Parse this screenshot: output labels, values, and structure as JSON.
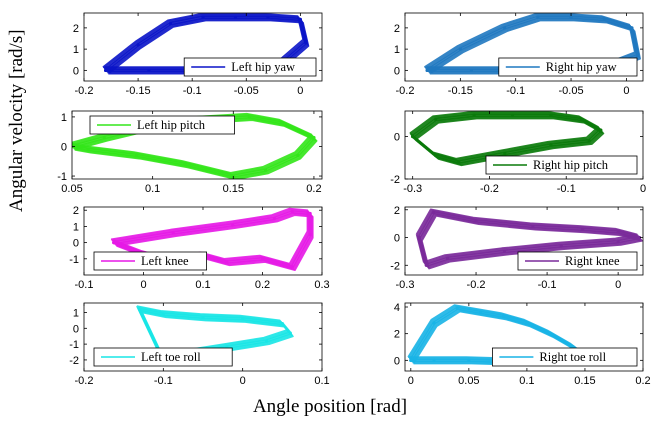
{
  "figure": {
    "ylabel": "Angular velocity [rad/s]",
    "xlabel": "Angle position [rad]"
  },
  "chart_data": [
    {
      "type": "line",
      "name": "Left hip yaw",
      "color": "#0a14c8",
      "legend_pos": "bottom-right",
      "xlim": [
        -0.2,
        0.02
      ],
      "ylim": [
        -0.5,
        2.7
      ],
      "xticks": [
        -0.2,
        -0.15,
        -0.1,
        -0.05,
        0
      ],
      "xtick_labels": [
        "-0.2",
        "-0.15",
        "-0.1",
        "-0.05",
        "0"
      ],
      "yticks": [
        0,
        1,
        2
      ],
      "ytick_labels": [
        "0",
        "1",
        "2"
      ],
      "x": [
        -0.18,
        -0.15,
        -0.12,
        -0.09,
        -0.06,
        -0.03,
        0.0,
        0.005,
        -0.02,
        -0.06,
        -0.1,
        -0.14,
        -0.18
      ],
      "y": [
        0.0,
        1.2,
        2.2,
        2.5,
        2.5,
        2.5,
        2.4,
        1.3,
        0.2,
        -0.05,
        0.0,
        0.0,
        0.0
      ]
    },
    {
      "type": "line",
      "name": "Right hip yaw",
      "color": "#1f78c0",
      "legend_pos": "bottom-right",
      "xlim": [
        -0.2,
        0.015
      ],
      "ylim": [
        -0.5,
        2.7
      ],
      "xticks": [
        -0.2,
        -0.15,
        -0.1,
        -0.05,
        0
      ],
      "xtick_labels": [
        "-0.2",
        "-0.15",
        "-0.1",
        "-0.05",
        "0"
      ],
      "yticks": [
        0,
        1,
        2
      ],
      "ytick_labels": [
        "0",
        "1",
        "2"
      ],
      "x": [
        -0.18,
        -0.15,
        -0.11,
        -0.08,
        -0.05,
        -0.02,
        0.005,
        0.01,
        -0.02,
        -0.06,
        -0.1,
        -0.14,
        -0.18
      ],
      "y": [
        0.0,
        1.0,
        2.0,
        2.5,
        2.5,
        2.4,
        2.0,
        0.7,
        0.1,
        -0.05,
        0.0,
        0.0,
        0.0
      ]
    },
    {
      "type": "line",
      "name": "Left hip pitch",
      "color": "#33e61a",
      "legend_pos": "top-left",
      "xlim": [
        0.05,
        0.205
      ],
      "ylim": [
        -1.1,
        1.2
      ],
      "xticks": [
        0.05,
        0.1,
        0.15,
        0.2
      ],
      "xtick_labels": [
        "0.05",
        "0.1",
        "0.15",
        "0.2"
      ],
      "yticks": [
        -1,
        0,
        1
      ],
      "ytick_labels": [
        "-1",
        "0",
        "1"
      ],
      "x": [
        0.05,
        0.07,
        0.1,
        0.13,
        0.16,
        0.18,
        0.2,
        0.19,
        0.17,
        0.15,
        0.12,
        0.09,
        0.06,
        0.05
      ],
      "y": [
        0.0,
        0.3,
        0.7,
        0.9,
        1.0,
        0.8,
        0.3,
        -0.3,
        -0.8,
        -1.0,
        -0.6,
        -0.3,
        -0.1,
        0.0
      ]
    },
    {
      "type": "line",
      "name": "Right hip pitch",
      "color": "#0a7a0a",
      "legend_pos": "bottom-right",
      "xlim": [
        -0.31,
        0.0
      ],
      "ylim": [
        -2.0,
        1.2
      ],
      "xticks": [
        -0.3,
        -0.2,
        -0.1,
        0
      ],
      "xtick_labels": [
        "-0.3",
        "-0.2",
        "-0.1",
        "0"
      ],
      "yticks": [
        -2,
        0
      ],
      "ytick_labels": [
        "-2",
        "0"
      ],
      "x": [
        -0.3,
        -0.27,
        -0.22,
        -0.17,
        -0.12,
        -0.08,
        -0.055,
        -0.07,
        -0.12,
        -0.18,
        -0.24,
        -0.27,
        -0.3
      ],
      "y": [
        0.0,
        0.8,
        1.0,
        1.0,
        1.0,
        0.8,
        0.3,
        -0.2,
        -0.4,
        -0.8,
        -1.2,
        -0.9,
        0.0
      ]
    },
    {
      "type": "line",
      "name": "Left knee",
      "color": "#e619e6",
      "legend_pos": "bottom-left",
      "xlim": [
        -0.1,
        0.3
      ],
      "ylim": [
        -2.0,
        2.2
      ],
      "xticks": [
        -0.1,
        0,
        0.1,
        0.2,
        0.3
      ],
      "xtick_labels": [
        "-0.1",
        "0",
        "0.1",
        "0.2",
        "0.3"
      ],
      "yticks": [
        -1,
        0,
        1,
        2
      ],
      "ytick_labels": [
        "-1",
        "0",
        "1",
        "2"
      ],
      "x": [
        -0.05,
        0.05,
        0.15,
        0.22,
        0.25,
        0.28,
        0.28,
        0.25,
        0.2,
        0.14,
        0.1,
        0.05,
        0.0,
        -0.05
      ],
      "y": [
        0.0,
        0.6,
        1.1,
        1.5,
        1.9,
        1.8,
        0.5,
        -1.5,
        -1.0,
        -1.2,
        -0.8,
        -1.2,
        -0.7,
        0.0
      ]
    },
    {
      "type": "line",
      "name": "Right knee",
      "color": "#7a2a9a",
      "legend_pos": "bottom-right",
      "xlim": [
        -0.3,
        0.035
      ],
      "ylim": [
        -2.7,
        2.2
      ],
      "xticks": [
        -0.3,
        -0.2,
        -0.1,
        0
      ],
      "xtick_labels": [
        "-0.3",
        "-0.2",
        "-0.1",
        "0"
      ],
      "yticks": [
        -2,
        0,
        2
      ],
      "ytick_labels": [
        "-2",
        "0",
        "2"
      ],
      "x": [
        -0.28,
        -0.26,
        -0.2,
        -0.12,
        -0.05,
        0.0,
        0.03,
        0.0,
        -0.08,
        -0.16,
        -0.24,
        -0.27,
        -0.28
      ],
      "y": [
        0.0,
        1.8,
        1.2,
        0.8,
        0.6,
        0.4,
        0.0,
        -0.3,
        -0.6,
        -1.0,
        -1.5,
        -2.0,
        0.0
      ]
    },
    {
      "type": "line",
      "name": "Left toe roll",
      "color": "#19e6e6",
      "legend_pos": "bottom-left",
      "xlim": [
        -0.2,
        0.1
      ],
      "ylim": [
        -2.7,
        1.6
      ],
      "xticks": [
        -0.2,
        -0.1,
        0,
        0.1
      ],
      "xtick_labels": [
        "-0.2",
        "-0.1",
        "0",
        "0.1"
      ],
      "yticks": [
        -2,
        -1,
        0,
        1
      ],
      "ytick_labels": [
        "-2",
        "-1",
        "0",
        "1"
      ],
      "x": [
        -0.13,
        -0.1,
        -0.05,
        0.0,
        0.05,
        0.06,
        0.03,
        -0.02,
        -0.07,
        -0.1,
        -0.13
      ],
      "y": [
        1.2,
        0.9,
        0.7,
        0.6,
        0.3,
        -0.3,
        -0.8,
        -1.2,
        -1.6,
        -2.0,
        1.2
      ]
    },
    {
      "type": "line",
      "name": "Right toe roll",
      "color": "#19b4e6",
      "legend_pos": "bottom-right",
      "xlim": [
        -0.005,
        0.2
      ],
      "ylim": [
        -0.8,
        4.3
      ],
      "xticks": [
        0,
        0.05,
        0.1,
        0.15,
        0.2
      ],
      "xtick_labels": [
        "0",
        "0.05",
        "0.1",
        "0.15",
        "0.2"
      ],
      "yticks": [
        0,
        2,
        4
      ],
      "ytick_labels": [
        "0",
        "2",
        "4"
      ],
      "x": [
        0.0,
        0.02,
        0.04,
        0.06,
        0.08,
        0.1,
        0.12,
        0.14,
        0.155,
        0.13,
        0.09,
        0.05,
        0.02,
        0.0
      ],
      "y": [
        0.0,
        2.8,
        3.9,
        3.6,
        3.3,
        2.8,
        2.0,
        1.0,
        0.0,
        -0.1,
        -0.1,
        0.0,
        0.0,
        0.0
      ]
    }
  ]
}
